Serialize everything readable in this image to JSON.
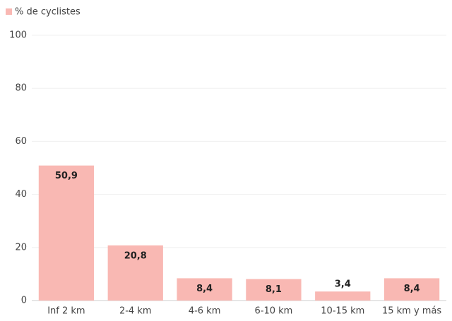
{
  "chart_data": {
    "type": "bar",
    "categories": [
      "Inf 2 km",
      "2-4 km",
      "4-6 km",
      "6-10 km",
      "10-15 km",
      "15 km y más"
    ],
    "series": [
      {
        "name": "% de cyclistes",
        "color": "#f9b8b3",
        "values": [
          50.9,
          20.8,
          8.4,
          8.1,
          3.4,
          8.4
        ],
        "value_labels": [
          "50,9",
          "20,8",
          "8,4",
          "8,1",
          "3,4",
          "8,4"
        ]
      }
    ],
    "ylim": [
      0,
      100
    ],
    "yticks": [
      0,
      20,
      40,
      60,
      80,
      100
    ],
    "grid": true,
    "legend": "top-left"
  }
}
